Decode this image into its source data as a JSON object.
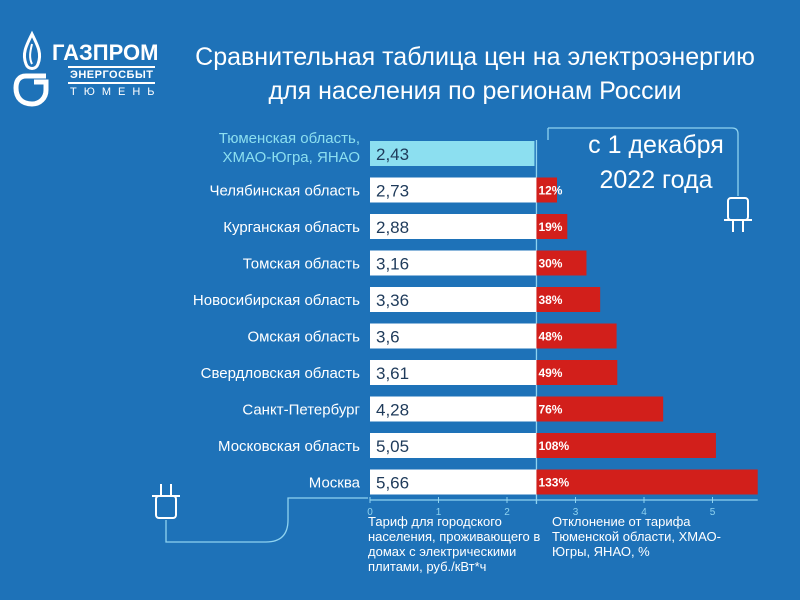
{
  "logo": {
    "brand": "ГАЗПРОМ",
    "sub": "ЭНЕРГОСБЫТ",
    "city": "ТЮМЕНЬ",
    "brand_color": "#ffffff"
  },
  "title_line1": "Сравнительная таблица цен на электроэнергию",
  "title_line2": "для населения по регионам России",
  "date_note_line1": "с 1 декабря",
  "date_note_line2": "2022 года",
  "footnote_tariff": "Тариф для городского населения, проживающего в домах с электрическими плитами, руб./кВт*ч",
  "footnote_deviation": "Отклонение от тарифа Тюменской области, ХМАО-Югры, ЯНАО, %",
  "colors": {
    "background": "#1e72b8",
    "bar_white": "#ffffff",
    "bar_highlight": "#8cdff0",
    "bar_red": "#d21f1b",
    "axis_line": "#8fd3f0"
  },
  "chart_data": {
    "type": "bar",
    "orientation": "horizontal",
    "categories": [
      [
        "Тюменская область,",
        "ХМАО-Югра, ЯНАО"
      ],
      [
        "Челябинская область"
      ],
      [
        "Курганская область"
      ],
      [
        "Томская область"
      ],
      [
        "Новосибирская область"
      ],
      [
        "Омская область"
      ],
      [
        "Свердловская область"
      ],
      [
        "Санкт-Петербург"
      ],
      [
        "Московская область"
      ],
      [
        "Москва"
      ]
    ],
    "series": [
      {
        "values": [
          2.43,
          2.73,
          2.88,
          3.16,
          3.36,
          3.6,
          3.61,
          4.28,
          5.05,
          5.66
        ],
        "labels": [
          "2,43",
          "2,73",
          "2,88",
          "3,16",
          "3,36",
          "3,6",
          "3,61",
          "4,28",
          "5,05",
          "5,66"
        ]
      },
      {
        "values": [
          null,
          12,
          19,
          30,
          38,
          48,
          49,
          76,
          108,
          133
        ],
        "labels": [
          "",
          "12%",
          "19%",
          "30%",
          "38%",
          "48%",
          "49%",
          "76%",
          "108%",
          "133%"
        ]
      }
    ],
    "x_ticks": [
      "0",
      "1",
      "2",
      "3",
      "4",
      "5"
    ],
    "xlim": [
      0,
      5.66
    ],
    "highlight_index": 0
  }
}
